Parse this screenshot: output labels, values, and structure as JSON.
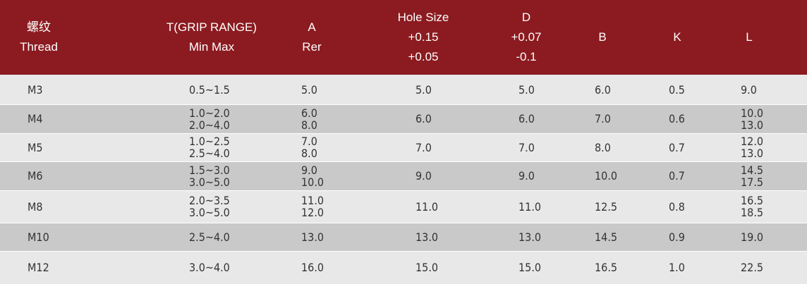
{
  "colors": {
    "header_bg": "#8b1b20",
    "header_text": "#ffffff",
    "row_light": "#e8e8e8",
    "row_dark": "#c9c9c9"
  },
  "headers": [
    {
      "lines": [
        "螺纹",
        "Thread"
      ]
    },
    {
      "lines": [
        "T(GRIP RANGE)",
        "Min Max"
      ]
    },
    {
      "lines": [
        "A",
        "Rer"
      ]
    },
    {
      "lines": [
        "Hole Size",
        "+0.15",
        "+0.05"
      ]
    },
    {
      "lines": [
        "D",
        "+0.07",
        "-0.1"
      ]
    },
    {
      "lines": [
        "B"
      ]
    },
    {
      "lines": [
        "K"
      ]
    },
    {
      "lines": [
        "L"
      ]
    }
  ],
  "rows": [
    {
      "thread": "M3",
      "t": [
        "0.5~1.5"
      ],
      "a": [
        "5.0"
      ],
      "hole": "5.0",
      "d": "5.0",
      "b": "6.0",
      "k": "0.5",
      "l": [
        "9.0"
      ]
    },
    {
      "thread": "M4",
      "t": [
        "1.0~2.0",
        "2.0~4.0"
      ],
      "a": [
        "6.0",
        "8.0"
      ],
      "hole": "6.0",
      "d": "6.0",
      "b": "7.0",
      "k": "0.6",
      "l": [
        "10.0",
        "13.0"
      ]
    },
    {
      "thread": "M5",
      "t": [
        "1.0~2.5",
        "2.5~4.0"
      ],
      "a": [
        "7.0",
        "8.0"
      ],
      "hole": "7.0",
      "d": "7.0",
      "b": "8.0",
      "k": "0.7",
      "l": [
        "12.0",
        "13.0"
      ]
    },
    {
      "thread": "M6",
      "t": [
        "1.5~3.0",
        "3.0~5.0"
      ],
      "a": [
        "9.0",
        "10.0"
      ],
      "hole": "9.0",
      "d": "9.0",
      "b": "10.0",
      "k": "0.7",
      "l": [
        "14.5",
        "17.5"
      ]
    },
    {
      "thread": "M8",
      "t": [
        "2.0~3.5",
        "3.0~5.0"
      ],
      "a": [
        "11.0",
        "12.0"
      ],
      "hole": "11.0",
      "d": "11.0",
      "b": "12.5",
      "k": "0.8",
      "l": [
        "16.5",
        "18.5"
      ]
    },
    {
      "thread": "M10",
      "t": [
        "2.5~4.0"
      ],
      "a": [
        "13.0"
      ],
      "hole": "13.0",
      "d": "13.0",
      "b": "14.5",
      "k": "0.9",
      "l": [
        "19.0"
      ]
    },
    {
      "thread": "M12",
      "t": [
        "3.0~4.0"
      ],
      "a": [
        "16.0"
      ],
      "hole": "15.0",
      "d": "15.0",
      "b": "16.5",
      "k": "1.0",
      "l": [
        "22.5"
      ]
    }
  ]
}
